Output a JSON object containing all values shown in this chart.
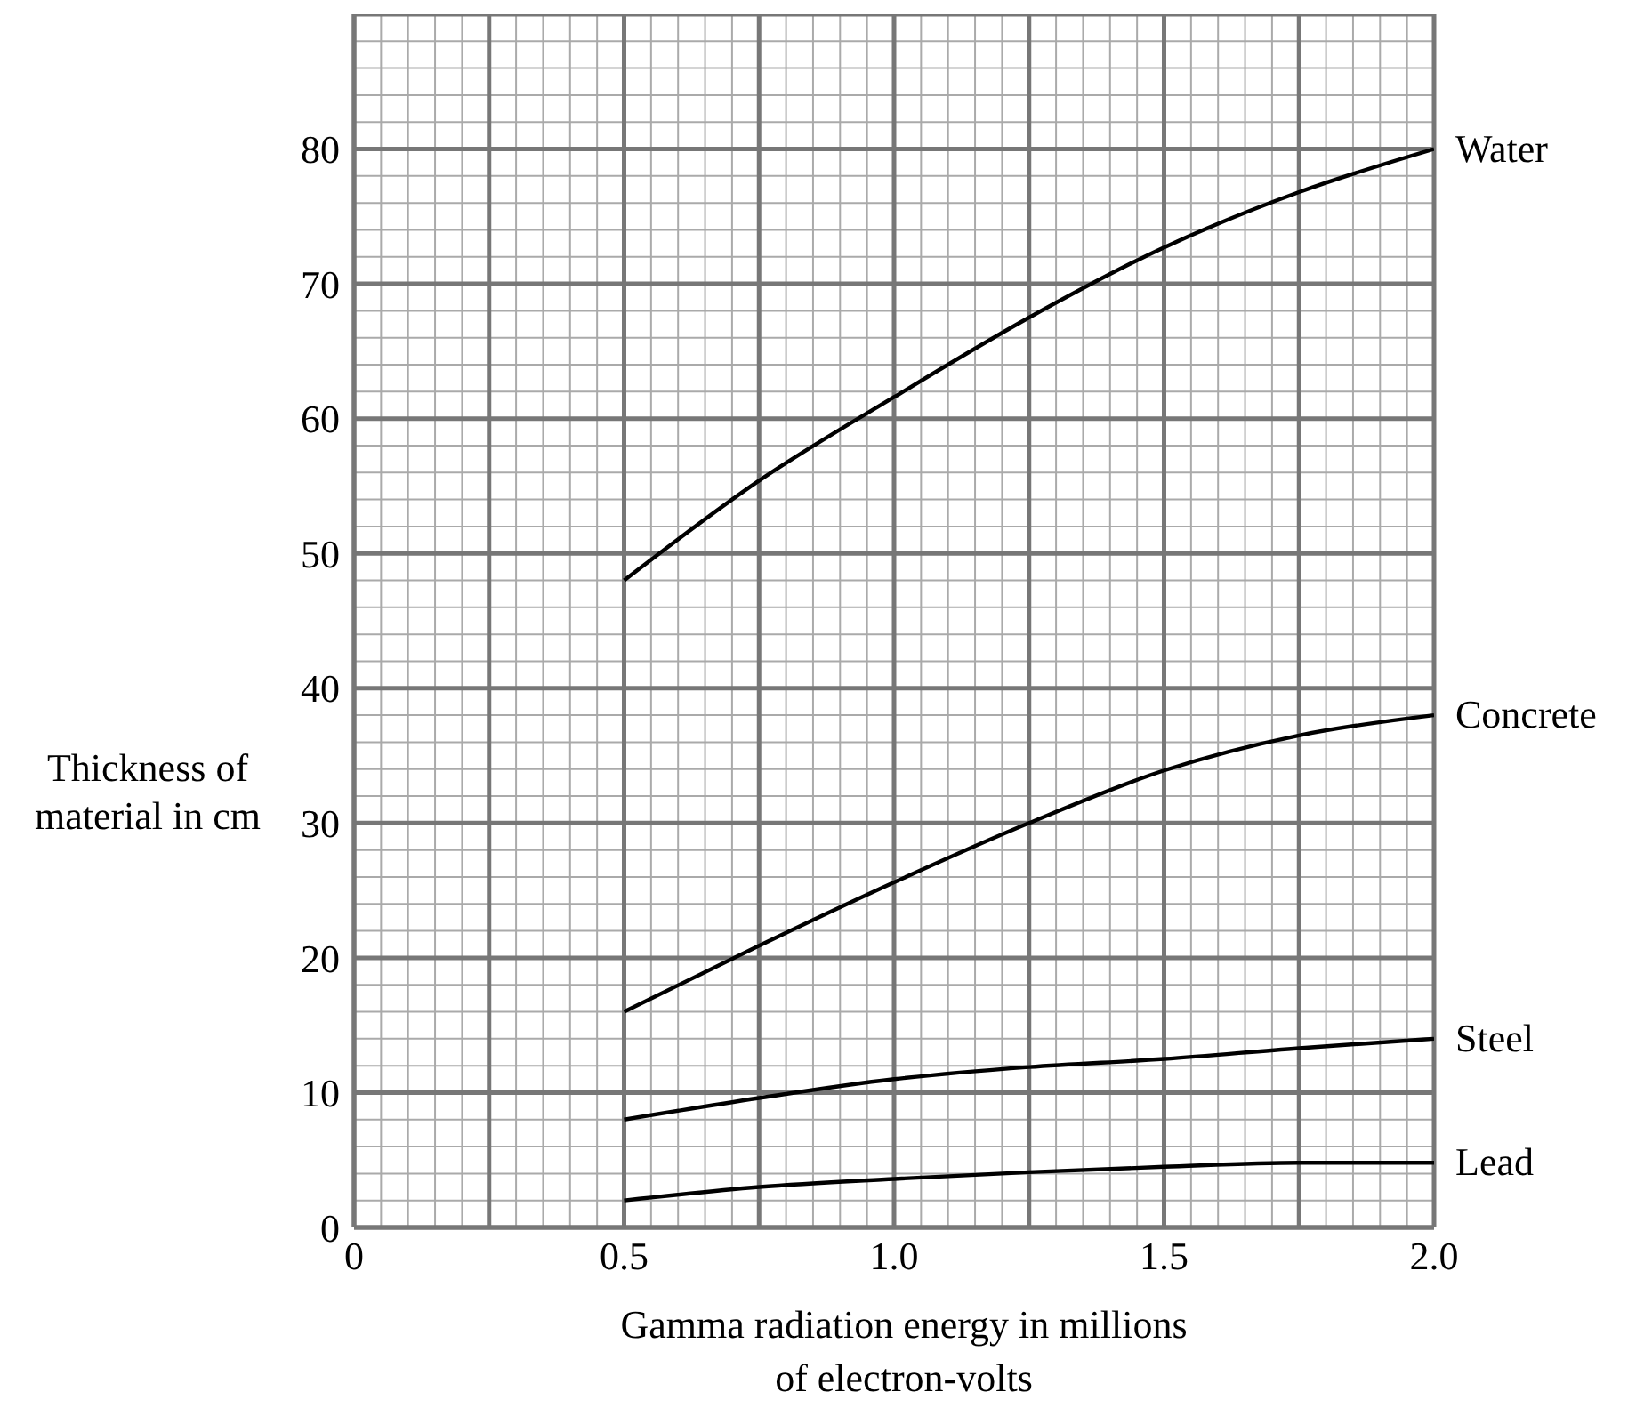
{
  "chart_data": {
    "type": "line",
    "xlabel": "Gamma radiation energy in millions of electron-volts",
    "ylabel": "Thickness of material in cm",
    "x": [
      0.5,
      0.75,
      1.0,
      1.25,
      1.5,
      1.75,
      2.0
    ],
    "series": [
      {
        "name": "Water",
        "color": "#000000",
        "values": [
          48,
          55.4,
          61.6,
          67.5,
          72.7,
          76.8,
          80
        ]
      },
      {
        "name": "Concrete",
        "color": "#000000",
        "values": [
          16,
          20.9,
          25.6,
          30,
          33.9,
          36.5,
          38
        ]
      },
      {
        "name": "Steel",
        "color": "#000000",
        "values": [
          8,
          9.6,
          11,
          11.9,
          12.5,
          13.3,
          14
        ]
      },
      {
        "name": "Lead",
        "color": "#000000",
        "values": [
          2,
          3,
          3.6,
          4.1,
          4.5,
          4.8,
          4.8
        ]
      }
    ],
    "xlim": [
      0,
      2.0
    ],
    "xticks": [
      0,
      0.5,
      {
        "value": 1,
        "label": "1.0"
      },
      1.5,
      {
        "value": 2,
        "label": "2.0"
      }
    ],
    "ylim": [
      0,
      90
    ],
    "yticks": [
      0,
      10,
      20,
      30,
      40,
      50,
      60,
      70,
      80
    ],
    "grid": true,
    "marker": "none",
    "line_style": "solid"
  }
}
